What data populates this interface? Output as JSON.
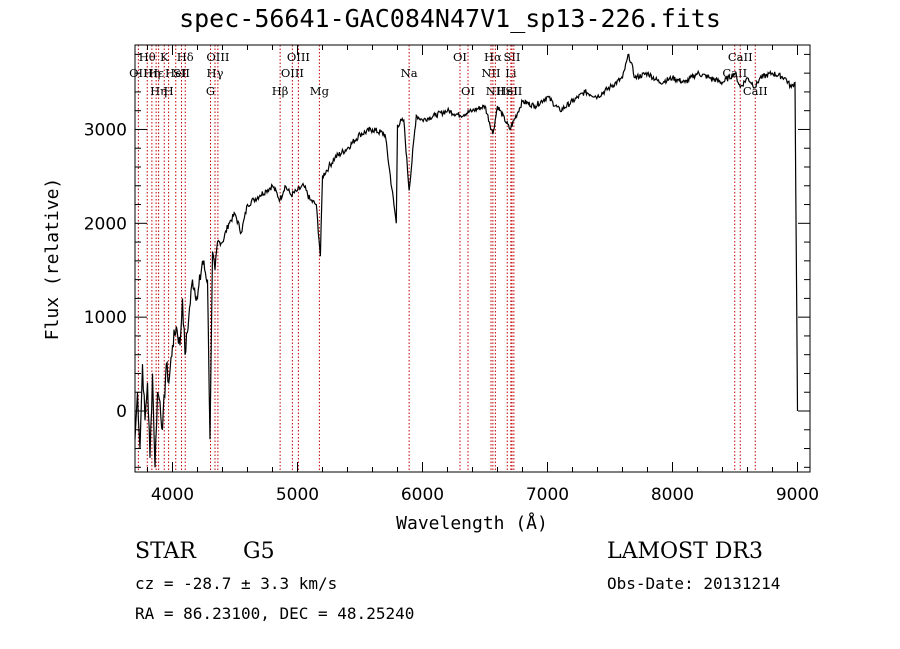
{
  "chart_data": {
    "type": "line",
    "title": "spec-56641-GAC084N47V1_sp13-226.fits",
    "xlabel": "Wavelength (Å)",
    "ylabel": "Flux (relative)",
    "xlim": [
      3700,
      9100
    ],
    "ylim": [
      -650,
      3900
    ],
    "xticks": [
      4000,
      5000,
      6000,
      7000,
      8000,
      9000
    ],
    "yticks": [
      0,
      1000,
      2000,
      3000
    ],
    "grid": false,
    "series": [
      {
        "x": [
          3700,
          3720,
          3740,
          3760,
          3780,
          3800,
          3820,
          3840,
          3860,
          3880,
          3900,
          3920,
          3950,
          3970,
          4000,
          4030,
          4060,
          4080,
          4100,
          4130,
          4160,
          4200,
          4240,
          4280,
          4300,
          4320,
          4340,
          4360,
          4400,
          4450,
          4500,
          4550,
          4600,
          4650,
          4700,
          4750,
          4800,
          4861,
          4900,
          4950,
          5000,
          5050,
          5100,
          5150,
          5183,
          5200,
          5250,
          5300,
          5400,
          5500,
          5600,
          5700,
          5790,
          5800,
          5850,
          5893,
          5950,
          6000,
          6100,
          6200,
          6300,
          6400,
          6500,
          6563,
          6600,
          6700,
          6800,
          6900,
          7000,
          7100,
          7200,
          7300,
          7400,
          7500,
          7600,
          7650,
          7700,
          7800,
          7900,
          8000,
          8100,
          8200,
          8300,
          8400,
          8500,
          8542,
          8600,
          8662,
          8700,
          8800,
          8900,
          8950,
          8980,
          9000
        ],
        "y": [
          -300,
          200,
          -400,
          500,
          -100,
          300,
          -500,
          400,
          -600,
          200,
          100,
          -200,
          500,
          300,
          700,
          900,
          700,
          1200,
          600,
          1000,
          1400,
          1200,
          1600,
          1400,
          -300,
          1700,
          1500,
          1800,
          1800,
          2000,
          2100,
          1900,
          2200,
          2250,
          2300,
          2350,
          2400,
          2250,
          2400,
          2300,
          2350,
          2400,
          2250,
          2200,
          1650,
          2500,
          2600,
          2700,
          2800,
          2950,
          3000,
          2950,
          2000,
          3050,
          3100,
          2350,
          3150,
          3100,
          3150,
          3200,
          3150,
          3200,
          3250,
          2950,
          3250,
          3000,
          3300,
          3250,
          3350,
          3200,
          3300,
          3400,
          3350,
          3450,
          3550,
          3800,
          3550,
          3600,
          3500,
          3550,
          3500,
          3600,
          3550,
          3500,
          3600,
          3450,
          3550,
          3450,
          3550,
          3600,
          3550,
          3450,
          3500,
          0
        ]
      }
    ],
    "lines": [
      {
        "wave": 3727,
        "row": 2,
        "label": "OII"
      },
      {
        "wave": 3798,
        "row": 1,
        "label": "Hθ"
      },
      {
        "wave": 3835,
        "row": 2,
        "label": "Hη"
      },
      {
        "wave": 3869,
        "row": 2,
        "label": "Hε"
      },
      {
        "wave": 3889,
        "row": 3,
        "label": "Hη"
      },
      {
        "wave": 3934,
        "row": 1,
        "label": "K"
      },
      {
        "wave": 3969,
        "row": 3,
        "label": "H"
      },
      {
        "wave": 4026,
        "row": 2,
        "label": "HeI"
      },
      {
        "wave": 4072,
        "row": 2,
        "label": "SII"
      },
      {
        "wave": 4102,
        "row": 1,
        "label": "Hδ"
      },
      {
        "wave": 4304,
        "row": 3,
        "label": "G"
      },
      {
        "wave": 4340,
        "row": 2,
        "label": "Hγ"
      },
      {
        "wave": 4363,
        "row": 1,
        "label": "OIII"
      },
      {
        "wave": 4861,
        "row": 3,
        "label": "Hβ"
      },
      {
        "wave": 4959,
        "row": 2,
        "label": "OIII"
      },
      {
        "wave": 5007,
        "row": 1,
        "label": "OIII"
      },
      {
        "wave": 5175,
        "row": 3,
        "label": "Mg"
      },
      {
        "wave": 5893,
        "row": 2,
        "label": "Na"
      },
      {
        "wave": 6300,
        "row": 1,
        "label": "OI"
      },
      {
        "wave": 6364,
        "row": 3,
        "label": "OI"
      },
      {
        "wave": 6548,
        "row": 2,
        "label": "NII"
      },
      {
        "wave": 6563,
        "row": 1,
        "label": "Hα"
      },
      {
        "wave": 6583,
        "row": 3,
        "label": "NII"
      },
      {
        "wave": 6678,
        "row": 3,
        "label": "HeI"
      },
      {
        "wave": 6707,
        "row": 2,
        "label": "Li"
      },
      {
        "wave": 6716,
        "row": 1,
        "label": "SII"
      },
      {
        "wave": 6731,
        "row": 3,
        "label": "SII"
      },
      {
        "wave": 8498,
        "row": 2,
        "label": "CaII"
      },
      {
        "wave": 8542,
        "row": 1,
        "label": "CaII"
      },
      {
        "wave": 8662,
        "row": 3,
        "label": "CaII"
      }
    ]
  },
  "info": {
    "object_type": "STAR",
    "subclass": "G5",
    "survey": "LAMOST DR3",
    "redshift": "cz = -28.7 ± 3.3 km/s",
    "obs_date": "Obs-Date: 20131214",
    "coords": "RA =  86.23100, DEC =  48.25240"
  }
}
